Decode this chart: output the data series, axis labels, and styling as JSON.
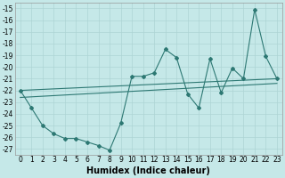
{
  "xlabel": "Humidex (Indice chaleur)",
  "background_color": "#c5e8e8",
  "grid_color": "#aed4d4",
  "line_color": "#2d7873",
  "xlim": [
    -0.5,
    23.5
  ],
  "ylim": [
    -27.5,
    -14.5
  ],
  "xtick_labels": [
    "0",
    "1",
    "2",
    "3",
    "4",
    "5",
    "6",
    "7",
    "8",
    "9",
    "10",
    "11",
    "12",
    "13",
    "14",
    "15",
    "16",
    "17",
    "18",
    "19",
    "20",
    "21",
    "22",
    "23"
  ],
  "ytick_values": [
    -15,
    -16,
    -17,
    -18,
    -19,
    -20,
    -21,
    -22,
    -23,
    -24,
    -25,
    -26,
    -27
  ],
  "ytick_labels": [
    "-15",
    "-16",
    "-17",
    "-18",
    "-19",
    "-20",
    "-21",
    "-22",
    "-23",
    "-24",
    "-25",
    "-26",
    "-27"
  ],
  "line1_x": [
    0,
    1,
    2,
    3,
    4,
    5,
    6,
    7,
    8,
    9,
    10,
    11,
    12,
    13,
    14,
    15,
    16,
    17,
    18,
    19,
    20,
    21,
    22,
    23
  ],
  "line1_y": [
    -22.0,
    -23.5,
    -25.0,
    -25.7,
    -26.1,
    -26.1,
    -26.4,
    -26.7,
    -27.1,
    -24.8,
    -20.8,
    -20.8,
    -20.5,
    -18.5,
    -19.2,
    -22.3,
    -23.5,
    -19.3,
    -22.2,
    -20.1,
    -21.0,
    -15.1,
    -19.1,
    -21.0
  ],
  "line2_x": [
    0,
    23
  ],
  "line2_y": [
    -22.0,
    -21.0
  ],
  "line3_x": [
    0,
    23
  ],
  "line3_y": [
    -22.6,
    -21.4
  ],
  "marker": "D",
  "markersize": 2,
  "linewidth": 0.8,
  "fontsize_xlabel": 7,
  "fontsize_ticks": 5.5
}
